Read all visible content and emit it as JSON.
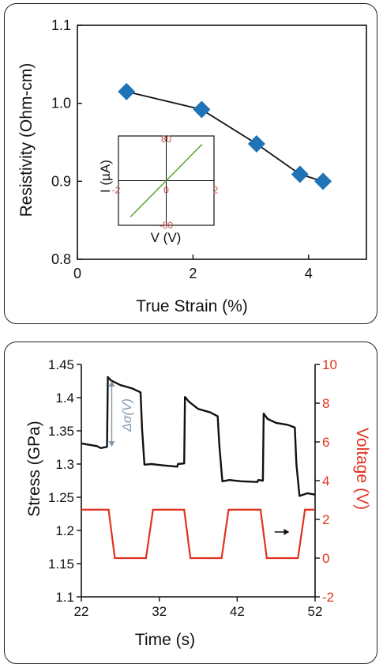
{
  "colors": {
    "diamond": "#1f73b7",
    "line": "#111111",
    "inset_line": "#5aa532",
    "inset_tick": "#c0504d",
    "stress": "#111111",
    "voltage": "#e0321e",
    "annotation": "#7f96a8"
  },
  "chart_data": [
    {
      "type": "scatter",
      "xlabel": "True Strain (%)",
      "ylabel": "Resistivity (Ohm-cm)",
      "xlim": [
        0,
        5
      ],
      "ylim": [
        0.8,
        1.1
      ],
      "x_ticks": [
        0,
        2,
        4
      ],
      "y_ticks": [
        0.8,
        0.9,
        1.0,
        1.1
      ],
      "x_tick_labels": [
        "0",
        "2",
        "4"
      ],
      "y_tick_labels": [
        "0.8",
        "0.9",
        "1.0",
        "1.1"
      ],
      "series": [
        {
          "x": [
            0.85,
            2.15,
            3.1,
            3.85,
            4.25
          ],
          "y": [
            1.015,
            0.992,
            0.948,
            0.909,
            0.9
          ]
        }
      ],
      "inset": {
        "type": "line",
        "xlabel": "V (V)",
        "ylabel": "I (µA)",
        "xlim": [
          -2,
          2
        ],
        "ylim": [
          -80,
          80
        ],
        "x_tick_labels": [
          "-2",
          "0",
          "2"
        ],
        "y_tick_labels": [
          "80",
          "-80"
        ],
        "x": [
          -1.5,
          1.5
        ],
        "y": [
          -65,
          65
        ]
      }
    },
    {
      "type": "line",
      "xlabel": "Time (s)",
      "ylabel": "Stress (GPa)",
      "y2label": "Voltage (V)",
      "xlim": [
        22,
        52
      ],
      "ylim": [
        1.1,
        1.45
      ],
      "y2lim": [
        -2,
        10
      ],
      "x_tick_labels": [
        "22",
        "32",
        "42",
        "52"
      ],
      "y_tick_labels": [
        "1.1",
        "1.15",
        "1.2",
        "1.25",
        "1.3",
        "1.35",
        "1.4",
        "1.45"
      ],
      "y2_tick_labels": [
        "-2",
        "0",
        "2",
        "4",
        "6",
        "8",
        "10"
      ],
      "annotation": "Δσ(V)",
      "series": [
        {
          "axis": "left",
          "x": [
            22,
            24,
            24.5,
            25.3,
            25.4,
            25.8,
            27,
            28.5,
            29.6,
            29.8,
            30.1,
            31,
            32.5,
            34.3,
            34.4,
            35.2,
            35.3,
            35.8,
            37,
            38.5,
            39.5,
            39.7,
            40.1,
            41,
            42.5,
            44.6,
            44.7,
            45.3,
            45.4,
            45.9,
            47,
            48.5,
            49.4,
            49.6,
            50,
            51,
            52
          ],
          "y": [
            1.331,
            1.327,
            1.324,
            1.326,
            1.431,
            1.426,
            1.419,
            1.414,
            1.408,
            1.352,
            1.299,
            1.3,
            1.298,
            1.296,
            1.3,
            1.301,
            1.401,
            1.394,
            1.383,
            1.378,
            1.372,
            1.33,
            1.274,
            1.276,
            1.274,
            1.273,
            1.276,
            1.275,
            1.376,
            1.368,
            1.362,
            1.359,
            1.355,
            1.3,
            1.252,
            1.256,
            1.254
          ]
        },
        {
          "axis": "right",
          "x": [
            22,
            25.5,
            26.3,
            30.3,
            31.2,
            35.2,
            36.0,
            40.0,
            40.9,
            45.0,
            45.8,
            49.8,
            50.7,
            52
          ],
          "y": [
            2.5,
            2.5,
            0,
            0,
            2.5,
            2.5,
            0,
            0,
            2.5,
            2.5,
            0,
            0,
            2.5,
            2.5
          ]
        }
      ]
    }
  ]
}
